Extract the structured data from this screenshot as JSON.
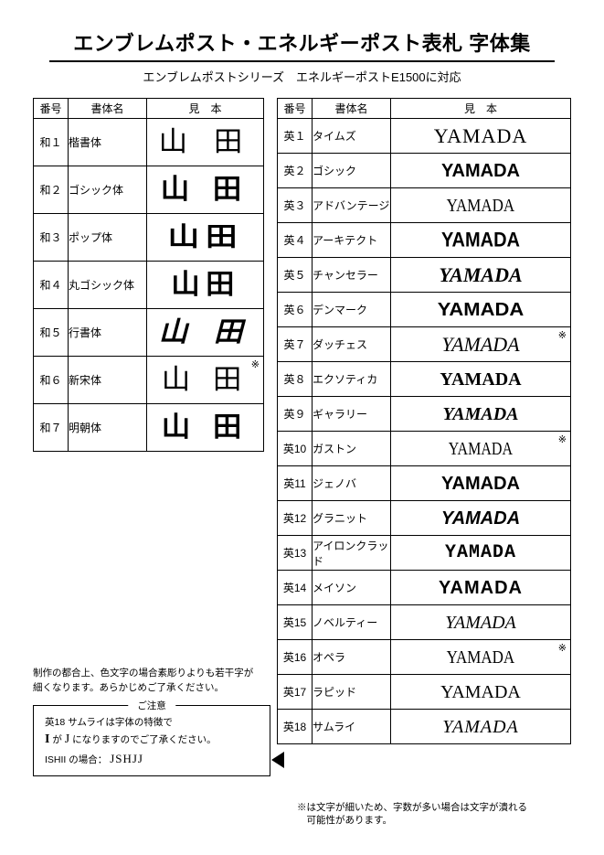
{
  "header": {
    "title": "エンブレムポスト・エネルギーポスト表札 字体集",
    "subtitle": "エンブレムポストシリーズ　エネルギーポストE1500に対応"
  },
  "table_headers": {
    "no": "番号",
    "name": "書体名",
    "sample": "見　本"
  },
  "jp_fonts": [
    {
      "no": "和１",
      "name": "楷書体",
      "sample": "山 田",
      "css": "jp-kai",
      "annot": ""
    },
    {
      "no": "和２",
      "name": "ゴシック体",
      "sample": "山 田",
      "css": "jp-goth",
      "annot": ""
    },
    {
      "no": "和３",
      "name": "ポップ体",
      "sample": "山田",
      "css": "jp-pop",
      "annot": ""
    },
    {
      "no": "和４",
      "name": "丸ゴシック体",
      "sample": "山田",
      "css": "jp-maru",
      "annot": ""
    },
    {
      "no": "和５",
      "name": "行書体",
      "sample": "山 田",
      "css": "jp-gyou",
      "annot": ""
    },
    {
      "no": "和６",
      "name": "新宋体",
      "sample": "山 田",
      "css": "jp-soutai",
      "annot": "※"
    },
    {
      "no": "和７",
      "name": "明朝体",
      "sample": "山 田",
      "css": "jp-min",
      "annot": ""
    }
  ],
  "en_fonts": [
    {
      "no": "英１",
      "name": "タイムズ",
      "sample": "YAMADA",
      "css": "en-times",
      "annot": ""
    },
    {
      "no": "英２",
      "name": "ゴシック",
      "sample": "YAMADA",
      "css": "en-gothic",
      "annot": ""
    },
    {
      "no": "英３",
      "name": "アドバンテージ",
      "sample": "YAMADA",
      "css": "en-advant",
      "annot": ""
    },
    {
      "no": "英４",
      "name": "アーキテクト",
      "sample": "YAMADA",
      "css": "en-archi",
      "annot": ""
    },
    {
      "no": "英５",
      "name": "チャンセラー",
      "sample": "YAMADA",
      "css": "en-chanc",
      "annot": ""
    },
    {
      "no": "英６",
      "name": "デンマーク",
      "sample": "YAMADA",
      "css": "en-denmark",
      "annot": ""
    },
    {
      "no": "英７",
      "name": "ダッチェス",
      "sample": "YAMADA",
      "css": "en-duchess",
      "annot": "※"
    },
    {
      "no": "英８",
      "name": "エクソティカ",
      "sample": "YAMADA",
      "css": "en-exotica",
      "annot": ""
    },
    {
      "no": "英９",
      "name": "ギャラリー",
      "sample": "YAMADA",
      "css": "en-gallery",
      "annot": ""
    },
    {
      "no": "英10",
      "name": "ガストン",
      "sample": "YAMADA",
      "css": "en-gaston",
      "annot": "※"
    },
    {
      "no": "英11",
      "name": "ジェノバ",
      "sample": "YAMADA",
      "css": "en-genova",
      "annot": ""
    },
    {
      "no": "英12",
      "name": "グラニット",
      "sample": "YAMADA",
      "css": "en-granit",
      "annot": ""
    },
    {
      "no": "英13",
      "name": "アイロンクラッド",
      "sample": "YAMADA",
      "css": "en-iron",
      "annot": ""
    },
    {
      "no": "英14",
      "name": "メイソン",
      "sample": "YAMADA",
      "css": "en-maison",
      "annot": ""
    },
    {
      "no": "英15",
      "name": "ノベルティー",
      "sample": "YAMADA",
      "css": "en-novelty",
      "annot": ""
    },
    {
      "no": "英16",
      "name": "オペラ",
      "sample": "YAMADA",
      "css": "en-opera",
      "annot": "※"
    },
    {
      "no": "英17",
      "name": "ラピッド",
      "sample": "YAMADA",
      "css": "en-rapid",
      "annot": ""
    },
    {
      "no": "英18",
      "name": "サムライ",
      "sample": "YAMADA",
      "css": "en-samurai",
      "annot": ""
    }
  ],
  "notes": {
    "production_note_l1": "制作の都合上、色文字の場合素彫りよりも若干字が",
    "production_note_l2": "細くなります。あらかじめご了承ください。",
    "legend_title": "ご注意",
    "legend_l1": "英18 サムライは字体の特徴で",
    "legend_I": "I",
    "legend_ga": " が ",
    "legend_J": "J",
    "legend_l2_tail": " になりますのでご了承ください。",
    "legend_l3_head": "ISHII の場合： ",
    "legend_l3_val": "JSHJJ",
    "footnote_l1": "※は文字が細いため、字数が多い場合は文字が潰れる",
    "footnote_l2": "　可能性があります。"
  }
}
